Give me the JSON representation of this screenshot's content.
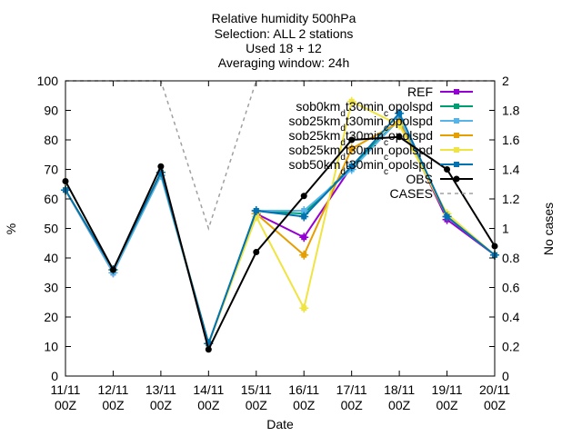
{
  "title_lines": [
    "Relative humidity 500hPa",
    "Selection: ALL       2 stations",
    "Used 18 + 12",
    "Averaging window: 24h"
  ],
  "chart_data": {
    "type": "line",
    "xlabel": "Date",
    "ylabel": "%",
    "y2label": "No cases",
    "x_categories": [
      [
        "11/11",
        "00Z"
      ],
      [
        "12/11",
        "00Z"
      ],
      [
        "13/11",
        "00Z"
      ],
      [
        "14/11",
        "00Z"
      ],
      [
        "15/11",
        "00Z"
      ],
      [
        "16/11",
        "00Z"
      ],
      [
        "17/11",
        "00Z"
      ],
      [
        "18/11",
        "00Z"
      ],
      [
        "19/11",
        "00Z"
      ],
      [
        "20/11",
        "00Z"
      ]
    ],
    "ylim": [
      0,
      100
    ],
    "yticks": [
      0,
      10,
      20,
      30,
      40,
      50,
      60,
      70,
      80,
      90,
      100
    ],
    "y2lim": [
      0,
      2
    ],
    "y2ticks": [
      "0",
      "0.2",
      "0.4",
      "0.6",
      "0.8",
      "1",
      "1.2",
      "1.4",
      "1.6",
      "1.8",
      "2"
    ],
    "legend_position": "top-right",
    "series": [
      {
        "name": "REF",
        "color": "#9400d3",
        "axis": "y1",
        "dash": false,
        "values": [
          63,
          35,
          69,
          11,
          55,
          47,
          71,
          87,
          53,
          41
        ]
      },
      {
        "name": "sob0km_d t30min_c opolspd",
        "color": "#009e73",
        "axis": "y1",
        "dash": false,
        "values": [
          63,
          36,
          69,
          11,
          56,
          55,
          71,
          87,
          54,
          41
        ]
      },
      {
        "name": "sob25km_d t30min_c opolspd",
        "color": "#56b4e9",
        "axis": "y1",
        "dash": false,
        "values": [
          63,
          35,
          68,
          11,
          56,
          56,
          70,
          87,
          54,
          41
        ]
      },
      {
        "name": "sob25km_d t30min_c opolspd",
        "color": "#e69f00",
        "axis": "y1",
        "dash": false,
        "values": [
          63,
          36,
          69,
          11,
          55,
          41,
          77,
          86,
          54,
          41
        ]
      },
      {
        "name": "sob25km_d t30min_c opolspd",
        "color": "#f0e442",
        "axis": "y1",
        "dash": false,
        "values": [
          63,
          36,
          69,
          11,
          54,
          23,
          93,
          85,
          55,
          41
        ]
      },
      {
        "name": "sob50km_d t30min_c opolspd",
        "color": "#0072b2",
        "axis": "y1",
        "dash": false,
        "values": [
          63,
          36,
          69,
          11,
          56,
          54,
          71,
          89,
          54,
          41
        ]
      },
      {
        "name": "OBS",
        "color": "#000000",
        "axis": "y1",
        "dash": false,
        "values": [
          66,
          36,
          71,
          9,
          42,
          61,
          80,
          81,
          70,
          44
        ]
      },
      {
        "name": "CASES",
        "color": "#a0a0a0",
        "axis": "y2",
        "dash": true,
        "values": [
          2,
          2,
          2,
          1,
          2,
          2,
          2,
          2,
          2,
          2
        ]
      }
    ]
  },
  "legend_labels": [
    {
      "parts": [
        {
          "t": "REF"
        }
      ]
    },
    {
      "parts": [
        {
          "t": "sob0km"
        },
        {
          "t": "d",
          "sub": true
        },
        {
          "t": "t30min"
        },
        {
          "t": "c",
          "sub": true
        },
        {
          "t": "opolspd"
        }
      ]
    },
    {
      "parts": [
        {
          "t": "sob25km"
        },
        {
          "t": "d",
          "sub": true
        },
        {
          "t": "t30min"
        },
        {
          "t": "c",
          "sub": true
        },
        {
          "t": "opolspd"
        }
      ]
    },
    {
      "parts": [
        {
          "t": "sob25km"
        },
        {
          "t": "d",
          "sub": true
        },
        {
          "t": "t30min"
        },
        {
          "t": "c",
          "sub": true
        },
        {
          "t": "opolspd"
        }
      ]
    },
    {
      "parts": [
        {
          "t": "sob25km"
        },
        {
          "t": "d",
          "sub": true
        },
        {
          "t": "t30min"
        },
        {
          "t": "c",
          "sub": true
        },
        {
          "t": "opolspd"
        }
      ]
    },
    {
      "parts": [
        {
          "t": "sob50km"
        },
        {
          "t": "d",
          "sub": true
        },
        {
          "t": "t30min"
        },
        {
          "t": "c",
          "sub": true
        },
        {
          "t": "opolspd"
        }
      ]
    },
    {
      "parts": [
        {
          "t": "OBS"
        }
      ]
    },
    {
      "parts": [
        {
          "t": "CASES"
        }
      ]
    }
  ]
}
